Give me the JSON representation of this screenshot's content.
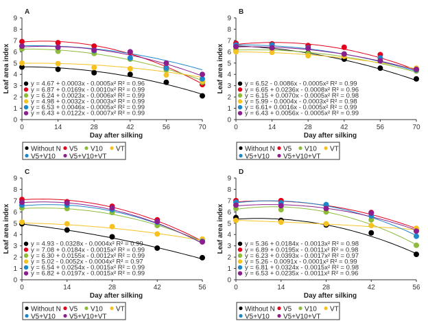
{
  "chart_data": [
    {
      "type": "scatter",
      "panel_label": "A",
      "xlabel": "Day after silking",
      "ylabel": "Leaf area index",
      "x": [
        0,
        14,
        28,
        42,
        56,
        70
      ],
      "xticks": [
        "0",
        "14",
        "28",
        "42",
        "56",
        "70"
      ],
      "yticks": [
        "0",
        "1",
        "2",
        "3",
        "4",
        "5",
        "6",
        "7",
        "8",
        "9"
      ],
      "xlim": [
        0,
        70
      ],
      "ylim": [
        0,
        9
      ],
      "series": [
        {
          "name": "Without N",
          "color": "#000000",
          "values": [
            4.65,
            4.45,
            4.15,
            4.0,
            3.3,
            2.1
          ],
          "fit": [
            4.67,
            0.0003,
            -0.0005
          ],
          "equation": "y = 4.67 + 0.0003x - 0.0005x² R² = 0.96"
        },
        {
          "name": "V5",
          "color": "#e3001b",
          "values": [
            6.9,
            6.8,
            6.5,
            5.95,
            4.6,
            3.1
          ],
          "fit": [
            6.87,
            0.0169,
            -0.001
          ],
          "equation": "y = 6.87 + 0.0169x - 0.0010x² R² = 0.99"
        },
        {
          "name": "V10",
          "color": "#8dbb3a",
          "values": [
            6.25,
            6.05,
            5.85,
            5.35,
            4.4,
            3.3
          ],
          "fit": [
            6.24,
            0.0023,
            -0.0006
          ],
          "equation": "y = 6.24 + 0.0023x - 0.0006x² R² = 0.99"
        },
        {
          "name": "VT",
          "color": "#f6c223",
          "values": [
            5.0,
            4.95,
            4.6,
            4.5,
            3.95,
            3.4
          ],
          "fit": [
            4.98,
            0.0032,
            -0.0003
          ],
          "equation": "y = 4.98 + 0.0032x - 0.0003x² R² = 0.99"
        },
        {
          "name": "V5+V10",
          "color": "#1f86c9",
          "values": [
            6.5,
            6.4,
            6.1,
            5.45,
            4.55,
            3.6
          ],
          "fit": [
            6.53,
            0.0046,
            -0.0005
          ],
          "equation": "y = 6.53 + 0.0046x - 0.0005x² R² = 0.99"
        },
        {
          "name": "V5+V10+VT",
          "color": "#8b1f8d",
          "values": [
            6.5,
            6.4,
            6.15,
            6.0,
            5.0,
            4.0
          ],
          "fit": [
            6.43,
            0.0122,
            -0.0007
          ],
          "equation": "y = 6.43 + 0.0122x - 0.0007x² R² = 0.99"
        }
      ],
      "legend": "bottom"
    },
    {
      "type": "scatter",
      "panel_label": "B",
      "xlabel": "Day after silking",
      "ylabel": "Leaf area index",
      "x": [
        0,
        14,
        28,
        42,
        56,
        70
      ],
      "xticks": [
        "0",
        "14",
        "28",
        "42",
        "56",
        "70"
      ],
      "yticks": [
        "0",
        "1",
        "2",
        "3",
        "4",
        "5",
        "6",
        "7",
        "8",
        "9"
      ],
      "xlim": [
        0,
        70
      ],
      "ylim": [
        0,
        9
      ],
      "series": [
        {
          "name": "Without N",
          "color": "#000000",
          "values": [
            6.5,
            6.3,
            5.9,
            5.35,
            4.55,
            3.6
          ],
          "fit": [
            6.52,
            -0.0086,
            -0.0005
          ],
          "equation": "y = 6.52 - 0.0086x - 0.0005x² R² = 0.99"
        },
        {
          "name": "V5",
          "color": "#e3001b",
          "values": [
            6.75,
            6.7,
            6.55,
            6.4,
            5.75,
            4.45
          ],
          "fit": [
            6.65,
            0.0236,
            -0.0008
          ],
          "equation": "y = 6.65 + 0.0236x - 0.0008x² R² = 0.96"
        },
        {
          "name": "V10",
          "color": "#8dbb3a",
          "values": [
            6.2,
            6.25,
            5.85,
            5.8,
            5.2,
            4.3
          ],
          "fit": [
            6.15,
            0.007,
            -0.0005
          ],
          "equation": "y = 6.15 + 0.0070x - 0.0005x² R² = 0.98"
        },
        {
          "name": "VT",
          "color": "#f6c223",
          "values": [
            6.0,
            5.95,
            5.65,
            5.6,
            5.2,
            4.55
          ],
          "fit": [
            5.99,
            -0.0004,
            -0.0003
          ],
          "equation": "y = 5.99 - 0.0004x - 0.0003x² R² = 0.98"
        },
        {
          "name": "V5+V10",
          "color": "#1f86c9",
          "values": [
            6.6,
            6.6,
            6.35,
            5.8,
            5.45,
            4.4
          ],
          "fit": [
            6.61,
            0.0016,
            -0.0005
          ],
          "equation": "y = 6.61+ 0.0016x - 0.0005x² R² = 0.99"
        },
        {
          "name": "V5+V10+VT",
          "color": "#8b1f8d",
          "values": [
            6.45,
            6.35,
            6.3,
            5.8,
            5.2,
            4.45
          ],
          "fit": [
            6.43,
            0.0056,
            -0.0005
          ],
          "equation": "y = 6.43 + 0.0056x - 0.0005x² R² = 0.99"
        }
      ],
      "legend": "bottom"
    },
    {
      "type": "scatter",
      "panel_label": "C",
      "xlabel": "Day after silking",
      "ylabel": "Leaf area index",
      "x": [
        0,
        14,
        28,
        42,
        56
      ],
      "xticks": [
        "0",
        "14",
        "28",
        "42",
        "56"
      ],
      "yticks": [
        "0",
        "1",
        "2",
        "3",
        "4",
        "5",
        "6",
        "7",
        "8",
        "9"
      ],
      "xlim": [
        0,
        56
      ],
      "ylim": [
        0,
        9
      ],
      "series": [
        {
          "name": "Without N",
          "color": "#000000",
          "values": [
            4.95,
            4.4,
            3.8,
            2.8,
            1.95
          ],
          "fit": [
            4.93,
            -0.0328,
            -0.0004
          ],
          "equation": "y = 4.93 - 0.0328x - 0.0004x² R² = 0.99"
        },
        {
          "name": "V5",
          "color": "#e3001b",
          "values": [
            7.1,
            6.9,
            6.5,
            5.3,
            3.45
          ],
          "fit": [
            7.08,
            0.0184,
            -0.0015
          ],
          "equation": "y = 7.08 + 0.0184x - 0.0015x² R² = 0.99"
        },
        {
          "name": "V10",
          "color": "#8dbb3a",
          "values": [
            6.35,
            6.3,
            5.95,
            4.8,
            3.5
          ],
          "fit": [
            6.3,
            0.0155,
            -0.0012
          ],
          "equation": "y = 6.30 + 0.0155x - 0.0012x² R² = 0.99"
        },
        {
          "name": "VT",
          "color": "#f6c223",
          "values": [
            5.1,
            4.95,
            4.7,
            4.05,
            3.6
          ],
          "fit": [
            5.02,
            -0.0052,
            -0.0004
          ],
          "equation": "y = 5.02 - 0.0052x - 0.0004x² R² = 0.97"
        },
        {
          "name": "V5+V10",
          "color": "#1f86c9",
          "values": [
            6.6,
            6.6,
            6.2,
            5.1,
            3.4
          ],
          "fit": [
            6.54,
            0.0254,
            -0.0015
          ],
          "equation": "y = 6.54 + 0.0254x - 0.0015x² R² = 0.99"
        },
        {
          "name": "V5+V10+VT",
          "color": "#8b1f8d",
          "values": [
            6.85,
            6.8,
            6.35,
            5.15,
            3.35
          ],
          "fit": [
            6.82,
            0.0197,
            -0.0015
          ],
          "equation": "y = 6.82 + 0.0197x - 0.0015x² R² = 0.99"
        }
      ],
      "legend": "bottom"
    },
    {
      "type": "scatter",
      "panel_label": "D",
      "xlabel": "Day after silking",
      "ylabel": "Leaf area index",
      "x": [
        0,
        14,
        28,
        42,
        56
      ],
      "xticks": [
        "0",
        "14",
        "28",
        "42",
        "56"
      ],
      "yticks": [
        "0",
        "1",
        "2",
        "3",
        "4",
        "5",
        "6",
        "7",
        "8",
        "9"
      ],
      "xlim": [
        0,
        56
      ],
      "ylim": [
        0,
        9
      ],
      "series": [
        {
          "name": "Without N",
          "color": "#000000",
          "values": [
            5.5,
            5.25,
            4.85,
            4.15,
            2.25
          ],
          "fit": [
            5.36,
            0.0184,
            -0.0013
          ],
          "equation": "y = 5.36 + 0.0184x - 0.0013x² R² = 0.98"
        },
        {
          "name": "V5",
          "color": "#e3001b",
          "values": [
            7.0,
            7.0,
            6.6,
            5.95,
            4.4
          ],
          "fit": [
            6.89,
            0.0195,
            -0.0011
          ],
          "equation": "y = 6.89 + 0.0195x - 0.0011x² R² = 0.98"
        },
        {
          "name": "V10",
          "color": "#8dbb3a",
          "values": [
            6.3,
            6.2,
            6.0,
            5.3,
            3.05
          ],
          "fit": [
            6.23,
            0.0393,
            -0.0017
          ],
          "equation": "y = 6.23 + 0.0393x - 0.0017x² R² = 0.97"
        },
        {
          "name": "VT",
          "color": "#f6c223",
          "values": [
            5.25,
            5.1,
            4.95,
            4.8,
            4.55
          ],
          "fit": [
            5.26,
            -0.0091,
            -0.0001
          ],
          "equation": "y = 5.26 - 0.0091x - 0.0001x² R² = 0.99"
        },
        {
          "name": "V5+V10",
          "color": "#1f86c9",
          "values": [
            6.85,
            6.8,
            6.65,
            5.65,
            3.85
          ],
          "fit": [
            6.81,
            0.0324,
            -0.0015
          ],
          "equation": "y = 6.81 + 0.0324x - 0.0015x² R² = 0.98"
        },
        {
          "name": "V5+V10+VT",
          "color": "#8b1f8d",
          "values": [
            6.6,
            6.55,
            6.3,
            5.9,
            4.3
          ],
          "fit": [
            6.53,
            0.0235,
            -0.0011
          ],
          "equation": "y = 6.53 + 0.0235x - 0.0011x² R² = 0.96"
        }
      ],
      "legend": "bottom"
    }
  ],
  "legend_order": [
    [
      "Without N",
      "V5",
      "V10",
      "VT"
    ],
    [
      "V5+V10",
      "V5+V10+VT"
    ]
  ]
}
